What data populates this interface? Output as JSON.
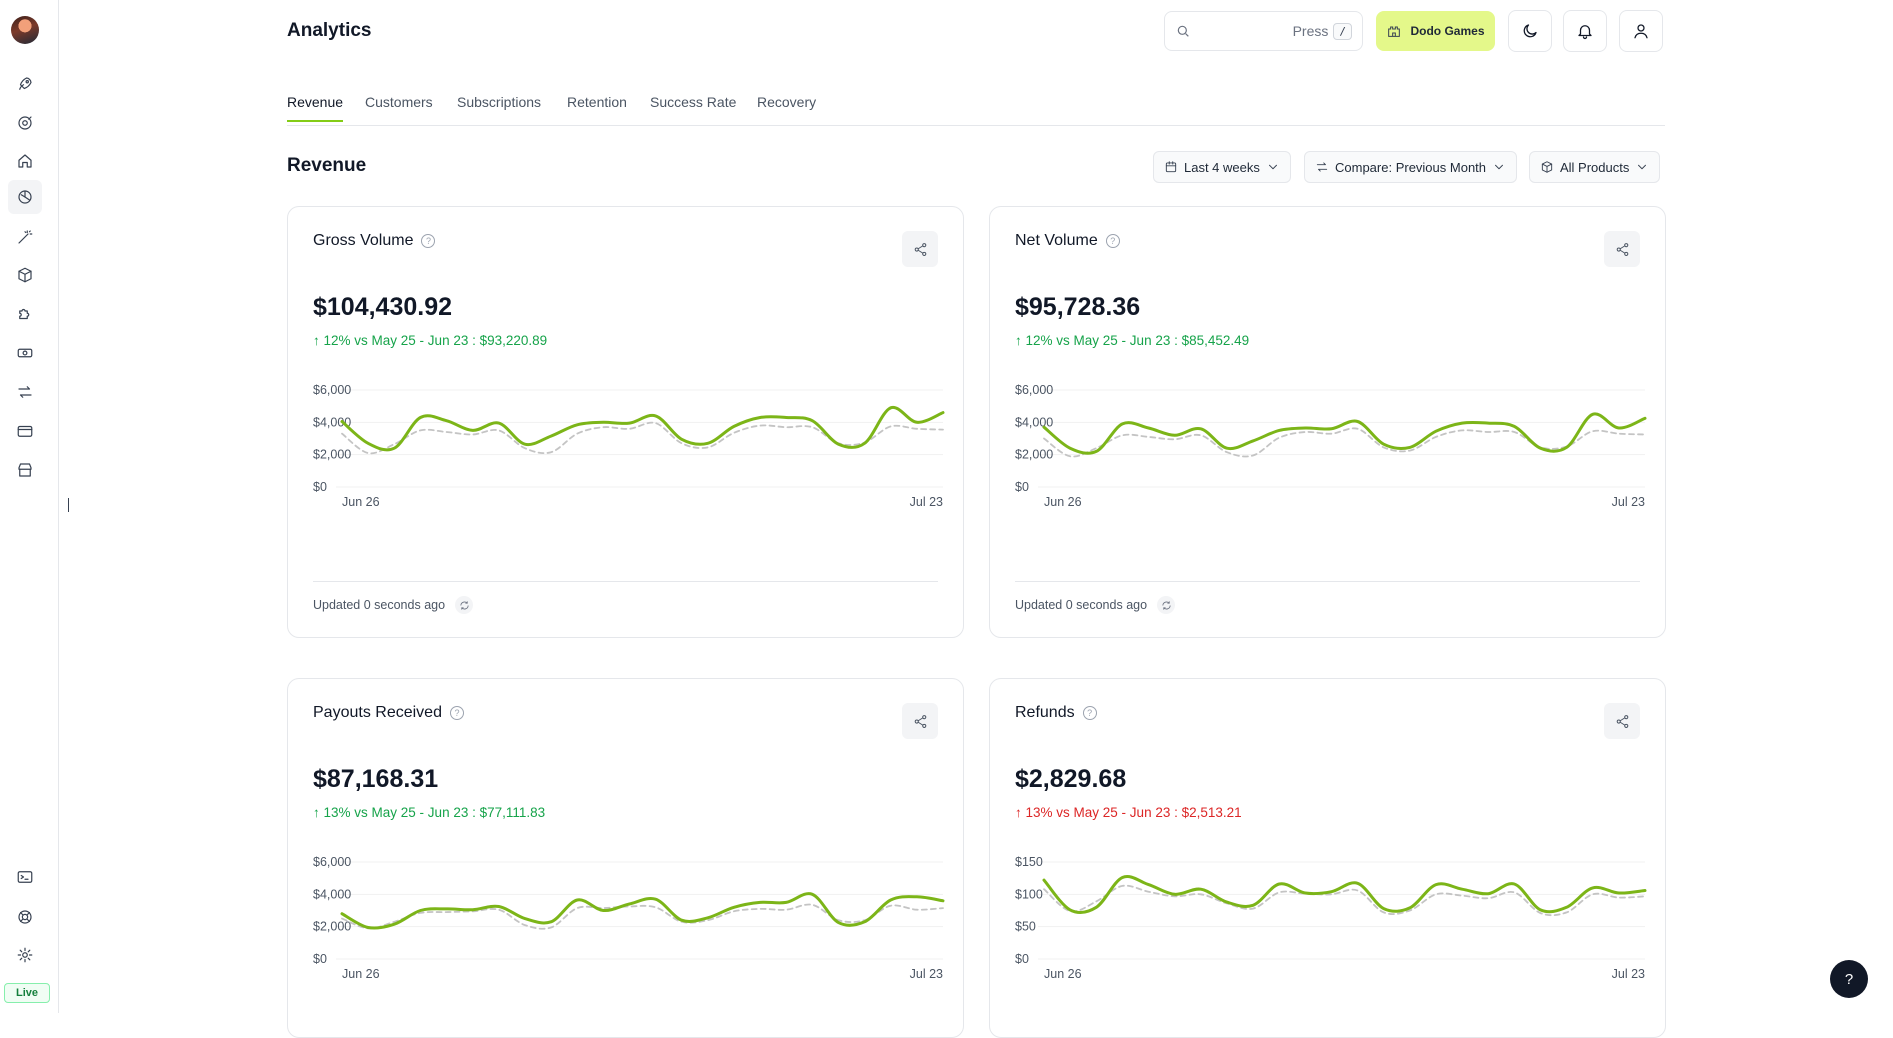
{
  "header": {
    "title": "Analytics",
    "search_hint": "Press",
    "search_kbd": "/",
    "brand_label": "Dodo Games"
  },
  "sidebar": {
    "badge": "Live"
  },
  "tabs": [
    "Revenue",
    "Customers",
    "Subscriptions",
    "Retention",
    "Success Rate",
    "Recovery"
  ],
  "section": {
    "title": "Revenue",
    "filters": {
      "period": "Last 4 weeks",
      "compare": "Compare: Previous Month",
      "products": "All Products"
    }
  },
  "cards": [
    {
      "title": "Gross Volume",
      "amount": "$104,430.92",
      "delta": "12% vs May 25 - Jun 23 : $93,220.89",
      "trend": "up-good",
      "footer": "Updated 0 seconds ago"
    },
    {
      "title": "Net Volume",
      "amount": "$95,728.36",
      "delta": "12% vs May 25 - Jun 23 : $85,452.49",
      "trend": "up-good",
      "footer": "Updated 0 seconds ago"
    },
    {
      "title": "Payouts Received",
      "amount": "$87,168.31",
      "delta": "13% vs May 25 - Jun 23 : $77,111.83",
      "trend": "up-good"
    },
    {
      "title": "Refunds",
      "amount": "$2,829.68",
      "delta": "13% vs May 25 - Jun 23 : $2,513.21",
      "trend": "up-bad"
    }
  ],
  "colors": {
    "current_series": "#7cb518",
    "previous_series": "#c4c4c4",
    "positive": "#16a34a",
    "negative": "#dc2626",
    "brand": "#e4f88a"
  },
  "chart_data": [
    {
      "type": "line",
      "title": "Gross Volume",
      "x_labels": [
        "Jun 26",
        "Jul 23"
      ],
      "yticks": [
        "$0",
        "$2,000",
        "$4,000",
        "$6,000"
      ],
      "ylim": [
        0,
        6000
      ],
      "series": [
        {
          "values": [
            4050,
            2700,
            2400,
            4300,
            4100,
            3500,
            3950,
            2650,
            3150,
            3850,
            4000,
            3950,
            4400,
            2950,
            2700,
            3750,
            4300,
            4300,
            4100,
            2650,
            2700,
            4900,
            4000,
            4600
          ]
        },
        {
          "values": [
            3300,
            2100,
            2650,
            3500,
            3400,
            3250,
            3500,
            2400,
            2150,
            3300,
            3700,
            3600,
            3950,
            2700,
            2450,
            3350,
            3800,
            3700,
            3700,
            2700,
            2750,
            3750,
            3600,
            3550
          ]
        }
      ]
    },
    {
      "type": "line",
      "title": "Net Volume",
      "x_labels": [
        "Jun 26",
        "Jul 23"
      ],
      "yticks": [
        "$0",
        "$2,000",
        "$4,000",
        "$6,000"
      ],
      "ylim": [
        0,
        6000
      ],
      "series": [
        {
          "values": [
            3700,
            2400,
            2200,
            3900,
            3650,
            3200,
            3600,
            2400,
            2850,
            3500,
            3650,
            3600,
            4050,
            2650,
            2450,
            3450,
            3950,
            3950,
            3750,
            2400,
            2450,
            4500,
            3650,
            4250
          ]
        },
        {
          "values": [
            3000,
            1900,
            2400,
            3200,
            3100,
            2950,
            3200,
            2150,
            1950,
            3050,
            3400,
            3300,
            3600,
            2450,
            2250,
            3100,
            3500,
            3400,
            3400,
            2450,
            2500,
            3450,
            3300,
            3250
          ]
        }
      ]
    },
    {
      "type": "line",
      "title": "Payouts Received",
      "x_labels": [
        "Jun 26",
        "Jul 23"
      ],
      "yticks": [
        "$0",
        "$2,000",
        "$4,000",
        "$6,000"
      ],
      "ylim": [
        0,
        6000
      ],
      "series": [
        {
          "values": [
            2800,
            1950,
            2150,
            3000,
            3100,
            3050,
            3250,
            2500,
            2300,
            3650,
            3000,
            3400,
            3700,
            2400,
            2550,
            3200,
            3500,
            3500,
            4000,
            2250,
            2300,
            3650,
            3850,
            3600
          ]
        },
        {
          "values": [
            2500,
            1900,
            2300,
            2850,
            2900,
            2950,
            3050,
            2100,
            1950,
            3150,
            3150,
            3250,
            3200,
            2300,
            2400,
            2950,
            3100,
            3050,
            3350,
            2400,
            2400,
            3300,
            3050,
            3150
          ]
        }
      ]
    },
    {
      "type": "line",
      "title": "Refunds",
      "x_labels": [
        "Jun 26",
        "Jul 23"
      ],
      "yticks": [
        "$0",
        "$50",
        "$100",
        "$150"
      ],
      "ylim": [
        0,
        150
      ],
      "series": [
        {
          "values": [
            122,
            76,
            80,
            126,
            115,
            100,
            108,
            88,
            83,
            116,
            102,
            104,
            117,
            78,
            79,
            115,
            108,
            101,
            116,
            76,
            80,
            110,
            102,
            106
          ]
        },
        {
          "values": [
            108,
            74,
            89,
            113,
            104,
            97,
            100,
            86,
            78,
            103,
            101,
            100,
            106,
            72,
            75,
            100,
            98,
            94,
            103,
            71,
            72,
            100,
            95,
            97
          ]
        }
      ]
    }
  ]
}
